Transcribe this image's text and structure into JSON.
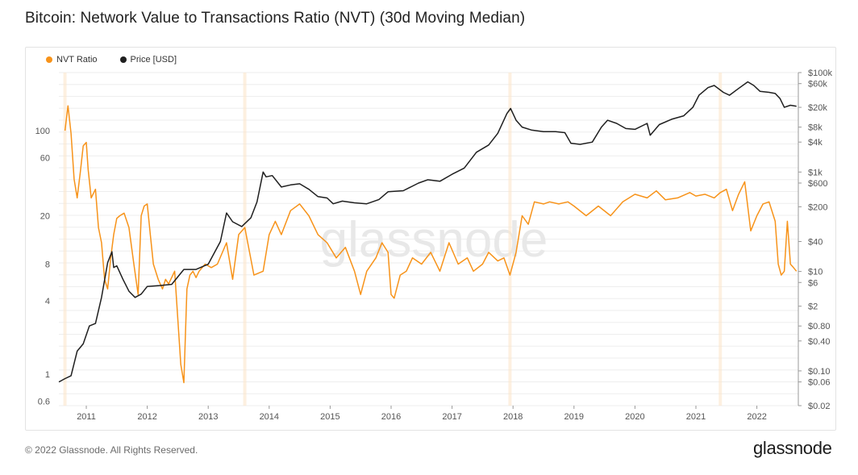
{
  "header": {
    "title": "Bitcoin: Network Value to Transactions Ratio (NVT) (30d Moving Median)"
  },
  "footer": {
    "copyright": "© 2022 Glassnode. All Rights Reserved.",
    "brand": "glassnode"
  },
  "watermark": "glassnode",
  "colors": {
    "nvt": "#f7931a",
    "price": "#1f1f1f",
    "grid": "#eeeeee",
    "shade": "#fbe6cc"
  },
  "chart_data": {
    "type": "line",
    "title": "Bitcoin: Network Value to Transactions Ratio (NVT) (30d Moving Median)",
    "x_ticks": [
      "2011",
      "2012",
      "2013",
      "2014",
      "2015",
      "2016",
      "2017",
      "2018",
      "2019",
      "2020",
      "2021",
      "2022"
    ],
    "xlim": [
      2010.55,
      2022.68
    ],
    "left_axis": {
      "scale": "log",
      "ylim": [
        0.55,
        300
      ],
      "ticks": [
        {
          "v": 0.6,
          "label": "0.6"
        },
        {
          "v": 1,
          "label": "1"
        },
        {
          "v": 4,
          "label": "4"
        },
        {
          "v": 8,
          "label": "8"
        },
        {
          "v": 20,
          "label": "20"
        },
        {
          "v": 60,
          "label": "60"
        },
        {
          "v": 100,
          "label": "100"
        }
      ]
    },
    "right_axis": {
      "scale": "log",
      "ylim": [
        0.02,
        100000
      ],
      "ticks": [
        {
          "v": 0.02,
          "label": "$0.02"
        },
        {
          "v": 0.06,
          "label": "$0.06"
        },
        {
          "v": 0.1,
          "label": "$0.10"
        },
        {
          "v": 0.4,
          "label": "$0.40"
        },
        {
          "v": 0.8,
          "label": "$0.80"
        },
        {
          "v": 2,
          "label": "$2"
        },
        {
          "v": 6,
          "label": "$6"
        },
        {
          "v": 10,
          "label": "$10"
        },
        {
          "v": 40,
          "label": "$40"
        },
        {
          "v": 200,
          "label": "$200"
        },
        {
          "v": 600,
          "label": "$600"
        },
        {
          "v": 1000,
          "label": "$1k"
        },
        {
          "v": 4000,
          "label": "$4k"
        },
        {
          "v": 8000,
          "label": "$8k"
        },
        {
          "v": 20000,
          "label": "$20k"
        },
        {
          "v": 60000,
          "label": "$60k"
        },
        {
          "v": 100000,
          "label": "$100k"
        }
      ]
    },
    "legend_position": "top-left",
    "grid": true,
    "series": [
      {
        "name": "NVT Ratio",
        "axis": "left",
        "color": "#f7931a",
        "x": [
          2010.65,
          2010.7,
          2010.75,
          2010.8,
          2010.85,
          2010.9,
          2010.95,
          2011.0,
          2011.03,
          2011.08,
          2011.15,
          2011.2,
          2011.25,
          2011.3,
          2011.35,
          2011.4,
          2011.45,
          2011.5,
          2011.55,
          2011.62,
          2011.7,
          2011.78,
          2011.85,
          2011.9,
          2011.95,
          2012.0,
          2012.05,
          2012.1,
          2012.18,
          2012.25,
          2012.3,
          2012.35,
          2012.45,
          2012.55,
          2012.6,
          2012.65,
          2012.7,
          2012.75,
          2012.8,
          2012.85,
          2012.95,
          2013.05,
          2013.15,
          2013.3,
          2013.4,
          2013.5,
          2013.6,
          2013.75,
          2013.9,
          2014.0,
          2014.1,
          2014.2,
          2014.35,
          2014.5,
          2014.65,
          2014.8,
          2014.95,
          2015.1,
          2015.25,
          2015.4,
          2015.5,
          2015.6,
          2015.75,
          2015.85,
          2015.95,
          2016.0,
          2016.05,
          2016.15,
          2016.25,
          2016.35,
          2016.5,
          2016.65,
          2016.8,
          2016.95,
          2017.1,
          2017.25,
          2017.35,
          2017.5,
          2017.6,
          2017.75,
          2017.85,
          2017.95,
          2018.05,
          2018.15,
          2018.25,
          2018.35,
          2018.5,
          2018.6,
          2018.75,
          2018.9,
          2019.0,
          2019.2,
          2019.4,
          2019.6,
          2019.8,
          2020.0,
          2020.2,
          2020.35,
          2020.5,
          2020.7,
          2020.9,
          2021.0,
          2021.15,
          2021.3,
          2021.4,
          2021.5,
          2021.6,
          2021.7,
          2021.8,
          2021.9,
          2022.0,
          2022.1,
          2022.2,
          2022.3,
          2022.35,
          2022.4,
          2022.45,
          2022.5,
          2022.55,
          2022.6,
          2022.65
        ],
        "y": [
          100,
          160,
          95,
          40,
          28,
          45,
          75,
          80,
          48,
          28,
          33,
          16,
          12,
          6,
          5,
          9,
          14,
          19,
          20,
          21,
          16,
          8,
          4.5,
          20,
          24,
          25,
          14,
          8,
          6,
          5,
          6,
          5.5,
          7,
          1.2,
          0.85,
          5,
          6.5,
          7,
          6.2,
          7,
          8,
          7.5,
          8,
          12,
          6,
          14,
          16,
          6.5,
          7,
          14,
          18,
          14,
          22,
          25,
          20,
          14,
          12,
          9,
          11,
          7,
          4.5,
          7,
          9,
          12,
          10,
          4.5,
          4.2,
          6.5,
          7,
          9,
          8,
          10,
          7,
          12,
          8,
          9,
          7,
          8,
          10,
          8.5,
          9,
          6.5,
          10,
          20,
          17,
          26,
          25,
          26,
          25,
          26,
          24,
          20,
          24,
          20,
          26,
          30,
          28,
          32,
          27,
          28,
          31,
          29,
          30,
          28,
          31,
          33,
          22,
          30,
          38,
          15,
          20,
          25,
          26,
          18,
          8,
          6.5,
          7,
          18,
          8,
          7.5,
          7
        ],
        "shade_peaks": [
          2010.65,
          2013.6,
          2017.95,
          2021.4
        ]
      },
      {
        "name": "Price [USD]",
        "axis": "right",
        "color": "#1f1f1f",
        "x": [
          2010.55,
          2010.65,
          2010.75,
          2010.85,
          2010.95,
          2011.05,
          2011.15,
          2011.25,
          2011.35,
          2011.42,
          2011.45,
          2011.5,
          2011.6,
          2011.7,
          2011.8,
          2011.9,
          2012.0,
          2012.2,
          2012.4,
          2012.6,
          2012.8,
          2013.0,
          2013.2,
          2013.3,
          2013.4,
          2013.55,
          2013.7,
          2013.8,
          2013.9,
          2013.95,
          2014.05,
          2014.2,
          2014.35,
          2014.5,
          2014.65,
          2014.8,
          2014.95,
          2015.05,
          2015.2,
          2015.4,
          2015.6,
          2015.8,
          2015.95,
          2016.2,
          2016.45,
          2016.6,
          2016.8,
          2017.0,
          2017.2,
          2017.4,
          2017.6,
          2017.75,
          2017.9,
          2017.96,
          2018.05,
          2018.15,
          2018.3,
          2018.5,
          2018.7,
          2018.85,
          2018.95,
          2019.1,
          2019.3,
          2019.45,
          2019.55,
          2019.7,
          2019.85,
          2020.0,
          2020.2,
          2020.25,
          2020.4,
          2020.6,
          2020.8,
          2020.95,
          2021.05,
          2021.2,
          2021.3,
          2021.45,
          2021.55,
          2021.7,
          2021.85,
          2021.95,
          2022.05,
          2022.2,
          2022.3,
          2022.38,
          2022.45,
          2022.55,
          2022.65
        ],
        "y": [
          0.06,
          0.07,
          0.08,
          0.25,
          0.35,
          0.8,
          0.9,
          3,
          15,
          25,
          12,
          13,
          7,
          4,
          3,
          3.5,
          5,
          5.2,
          5.5,
          11,
          11,
          14,
          40,
          150,
          100,
          80,
          120,
          250,
          1000,
          800,
          850,
          500,
          550,
          580,
          450,
          320,
          300,
          230,
          260,
          240,
          230,
          280,
          400,
          420,
          600,
          700,
          650,
          900,
          1200,
          2500,
          3500,
          6000,
          15000,
          19000,
          11000,
          8000,
          7000,
          6500,
          6500,
          6200,
          3800,
          3600,
          4000,
          8000,
          11000,
          9500,
          7500,
          7200,
          9500,
          5500,
          9000,
          11500,
          13500,
          20000,
          35000,
          50000,
          55000,
          40000,
          35000,
          48000,
          65000,
          55000,
          42000,
          40000,
          38000,
          30000,
          20000,
          22000,
          21000
        ]
      }
    ]
  }
}
